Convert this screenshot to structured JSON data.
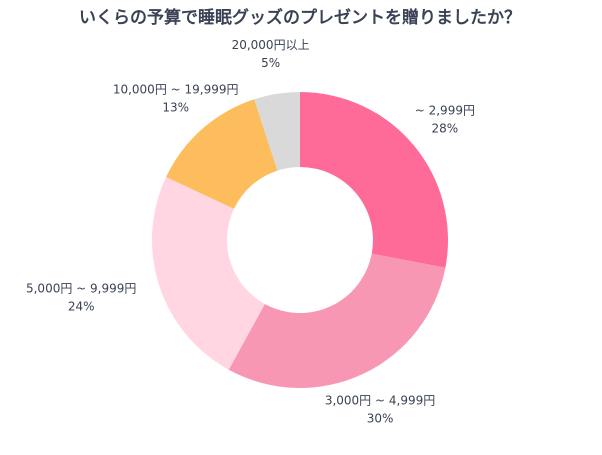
{
  "chart_data": {
    "type": "donut",
    "title": "いくらの予算で睡眠グッズのプレゼントを贈りましたか？",
    "categories": [
      "~ 2,999円",
      "3,000円 ~ 4,999円",
      "5,000円 ~ 9,999円",
      "10,000円 ~ 19,999円",
      "20,000円以上"
    ],
    "values": [
      28,
      30,
      24,
      13,
      5
    ],
    "value_labels": [
      "28%",
      "30%",
      "24%",
      "13%",
      "5%"
    ],
    "colors": [
      "#ff6b98",
      "#f797b3",
      "#ffd6e2",
      "#fdbd5c",
      "#d9d9d9"
    ]
  }
}
